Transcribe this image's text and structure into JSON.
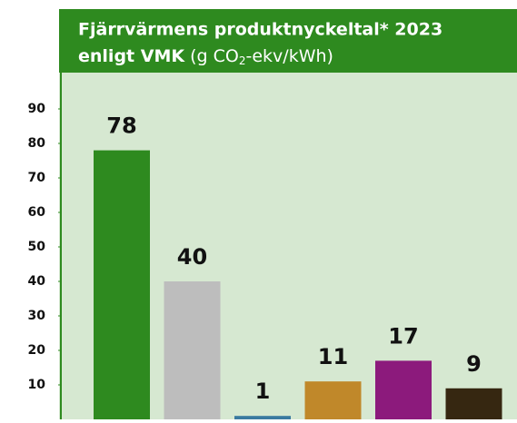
{
  "chart_data": {
    "type": "bar",
    "title": "Fjärrvärmens produktnyckeltal* 2023",
    "subtitle_bold": "enligt VMK",
    "subtitle": [
      "(g CO",
      "2",
      "-ekv/kWh)"
    ],
    "categories": [
      null,
      null,
      null,
      null,
      null,
      null
    ],
    "values": [
      78,
      40,
      1,
      11,
      17,
      9
    ],
    "colors": [
      "#2e8a1f",
      "#bdbdbd",
      "#3a7aa0",
      "#c0882a",
      "#8c1a7c",
      "#362711"
    ],
    "ylim": [
      0,
      100
    ],
    "yticks": [
      10,
      20,
      30,
      40,
      50,
      60,
      70,
      80,
      90
    ],
    "grid": false
  }
}
